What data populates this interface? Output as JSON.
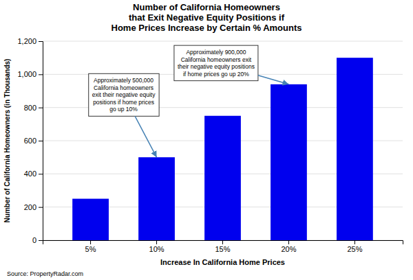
{
  "chart_data": {
    "type": "bar",
    "title": "Number of California Homeowners\nthat Exit Negative Equity Positions if\nHome Prices Increase by Certain % Amounts",
    "xlabel": "Increase In California Home Prices",
    "ylabel": "Number of California Homeowners (in Thousands)",
    "source": "Source: PropertyRadar.com",
    "categories": [
      "5%",
      "10%",
      "15%",
      "20%",
      "25%"
    ],
    "values": [
      250,
      500,
      750,
      940,
      1100
    ],
    "color": "#0000EE",
    "ylim": [
      0,
      1200
    ],
    "yticks": [
      0,
      200,
      400,
      600,
      800,
      {
        "value": 1000,
        "label": "1,000"
      },
      {
        "value": 1200,
        "label": "1,200"
      }
    ],
    "grid": true,
    "annotations": [
      {
        "text": "Approximately 500,000\nCalifornia homeowners\nexit their negative equity\npositions if home prices\ngo up 10%",
        "category": "10%"
      },
      {
        "text": "Approximately 900,000\nCalifornia homeowners exit\ntheir negative equity positions\nif home prices go up 20%",
        "category": "20%"
      }
    ]
  }
}
